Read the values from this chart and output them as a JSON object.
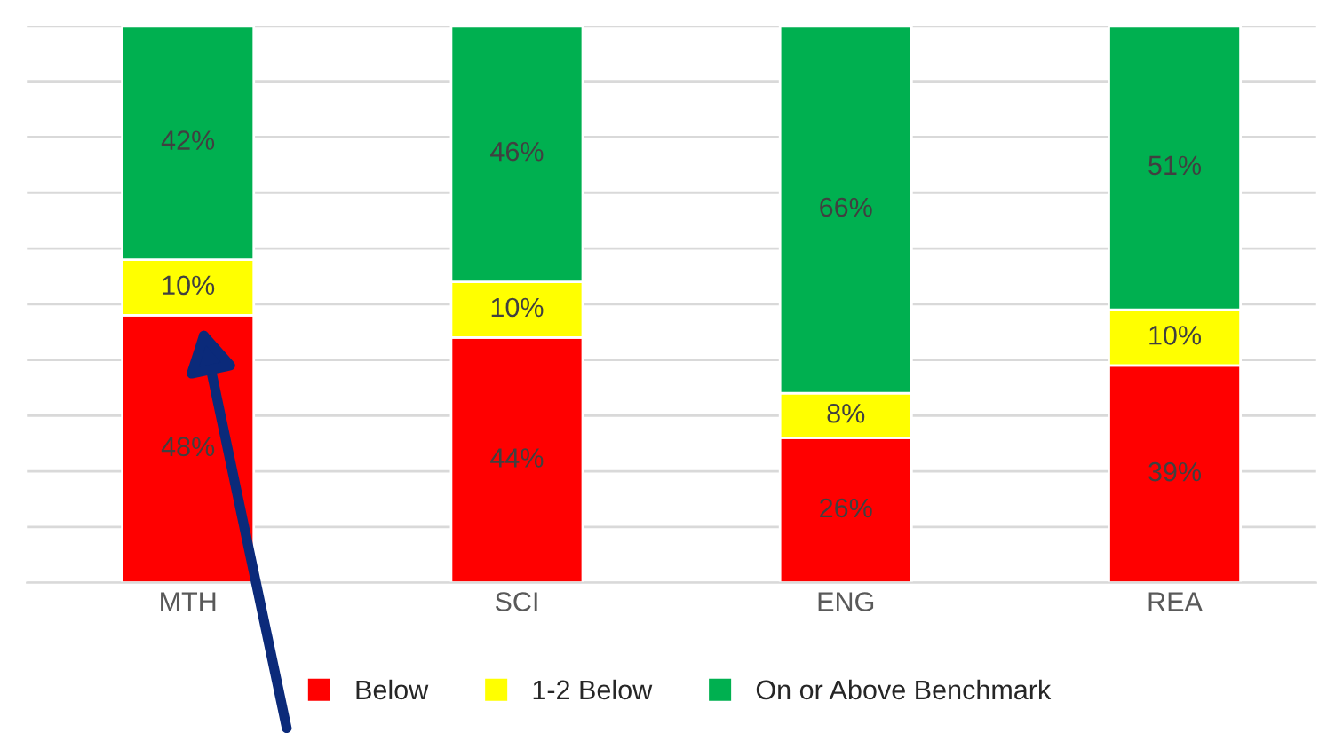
{
  "chart_data": {
    "type": "bar",
    "stacked": true,
    "categories": [
      "MTH",
      "SCI",
      "ENG",
      "REA"
    ],
    "series": [
      {
        "name": "Below",
        "color": "#ff0000",
        "values": [
          48,
          44,
          26,
          39
        ],
        "value_labels": [
          "48%",
          "44%",
          "26%",
          "39%"
        ]
      },
      {
        "name": "1-2 Below",
        "color": "#ffff00",
        "values": [
          10,
          10,
          8,
          10
        ],
        "value_labels": [
          "10%",
          "10%",
          "8%",
          "10%"
        ]
      },
      {
        "name": "On or Above Benchmark",
        "color": "#00b050",
        "values": [
          42,
          46,
          66,
          51
        ],
        "value_labels": [
          "42%",
          "46%",
          "66%",
          "51%"
        ]
      }
    ],
    "ylim": [
      0,
      100
    ],
    "yticks": [
      {
        "value": 0,
        "label": null
      },
      {
        "value": 10,
        "label": null
      },
      {
        "value": 20,
        "label": null
      },
      {
        "value": 30,
        "label": null
      },
      {
        "value": 40,
        "label": null
      },
      {
        "value": 50,
        "label": null
      },
      {
        "value": 60,
        "label": null
      },
      {
        "value": 70,
        "label": null
      },
      {
        "value": 80,
        "label": null
      },
      {
        "value": 90,
        "label": null
      },
      {
        "value": 100,
        "label": null
      }
    ],
    "tick_labels": "x",
    "grid": "y",
    "legend": "bottom"
  }
}
